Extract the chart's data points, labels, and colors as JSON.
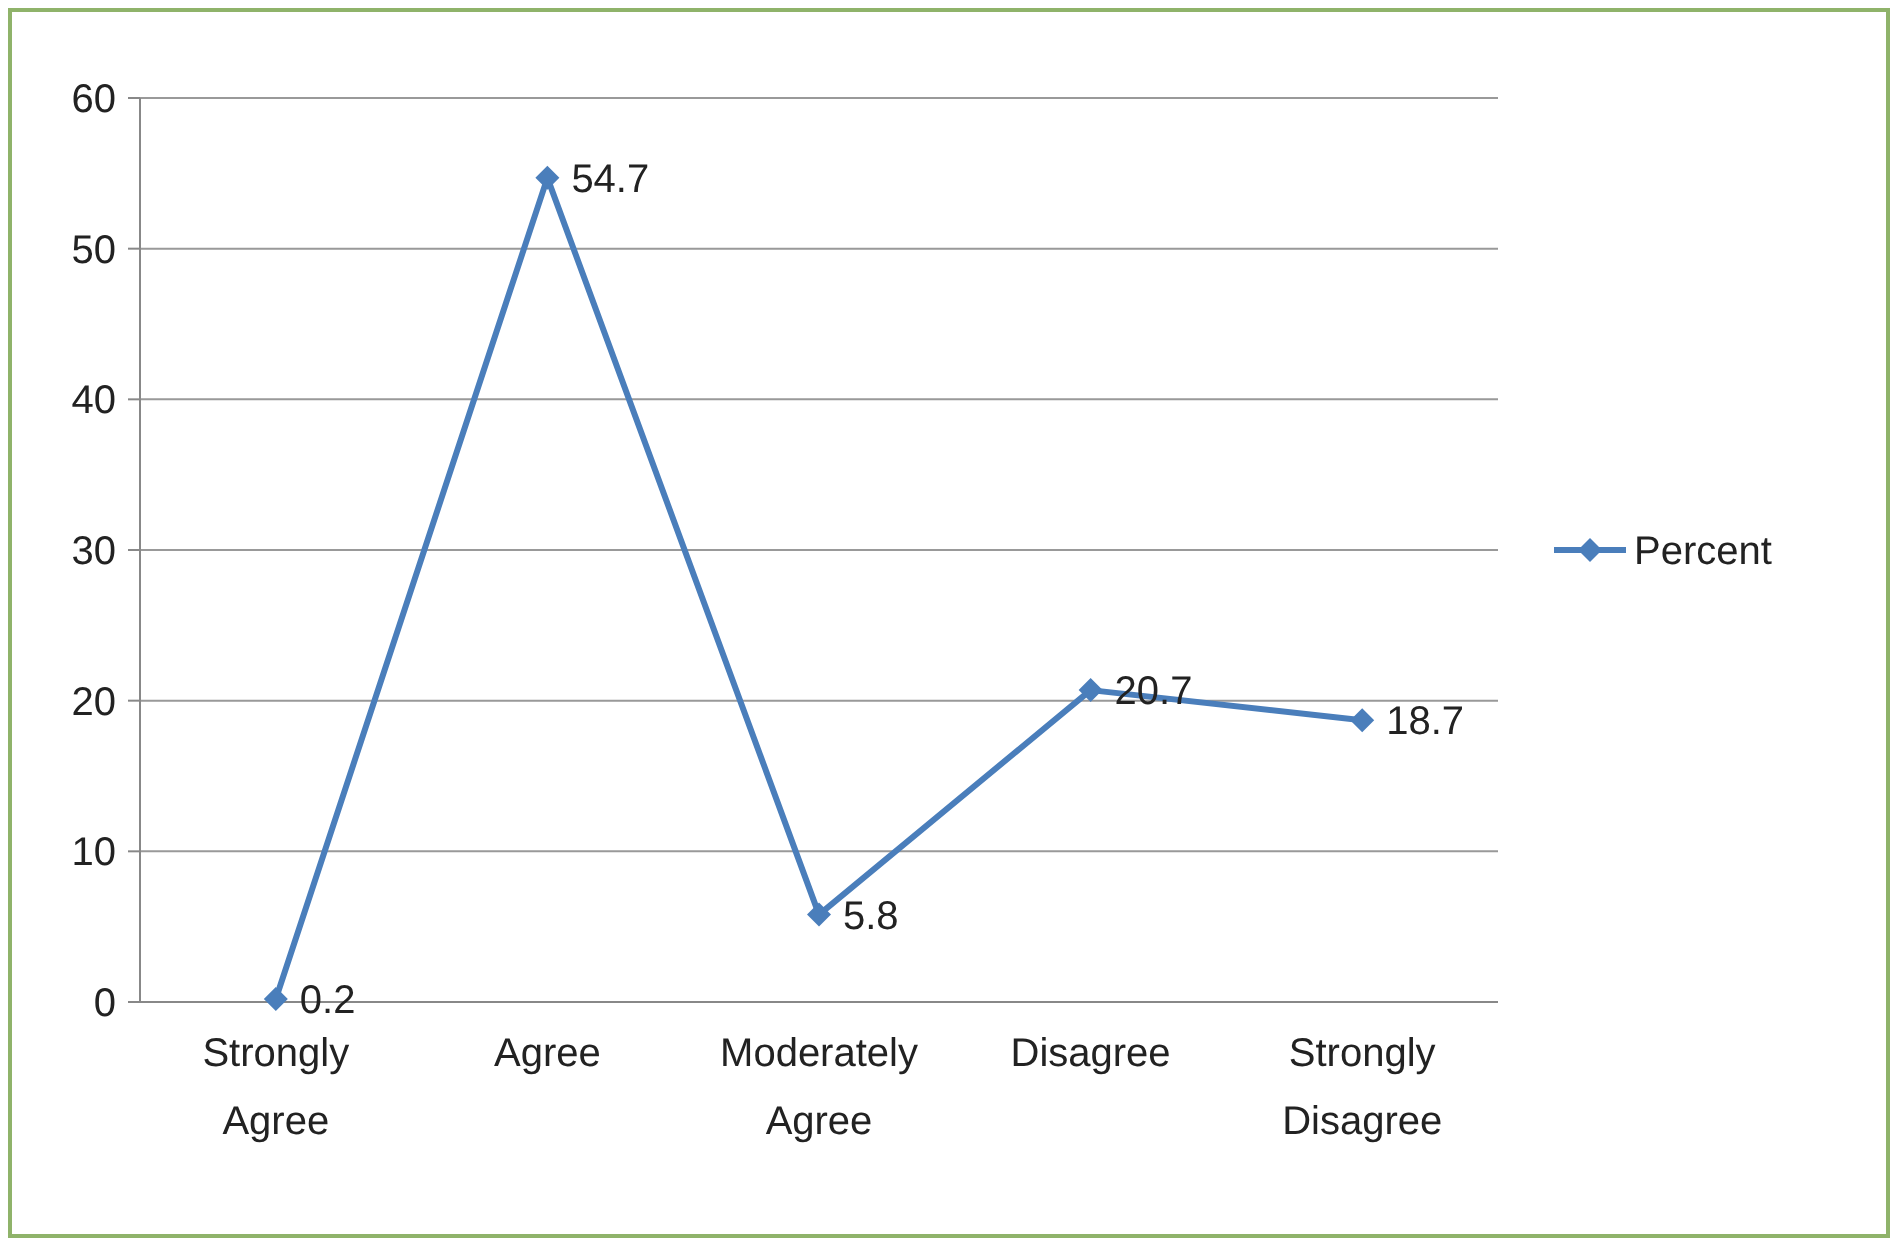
{
  "chart_data": {
    "type": "line",
    "categories": [
      "Strongly Agree",
      "Agree",
      "Moderately Agree",
      "Disagree",
      "Strongly Disagree"
    ],
    "series": [
      {
        "name": "Percent",
        "color": "#4a7ebb",
        "values": [
          0.2,
          54.7,
          5.8,
          20.7,
          18.7
        ]
      }
    ],
    "ylim": [
      0,
      60
    ],
    "yticks": [
      0,
      10,
      20,
      30,
      40,
      50,
      60
    ],
    "grid": "y",
    "legend": "right",
    "marker": "diamond",
    "line_style": "solid",
    "data_labels": true
  }
}
